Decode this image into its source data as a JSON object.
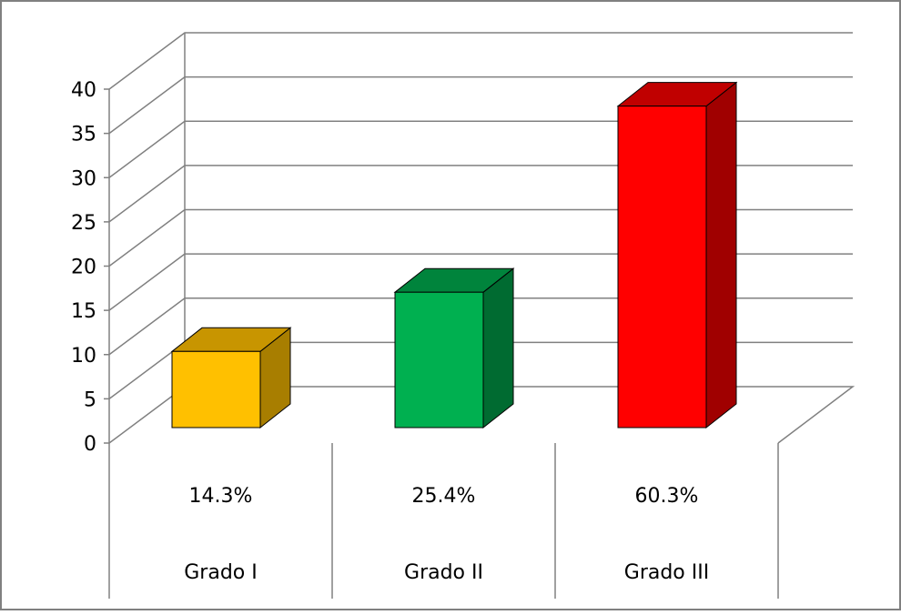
{
  "chart_data": {
    "type": "bar",
    "title": "",
    "xlabel": "",
    "ylabel": "",
    "ylim": [
      0,
      40
    ],
    "yticks": [
      0,
      5,
      10,
      15,
      20,
      25,
      30,
      35,
      40
    ],
    "grid": true,
    "legend": "none",
    "style": "3d-column",
    "categories": [
      "Grado I",
      "Grado II",
      "Grado III"
    ],
    "values": [
      9,
      16,
      38
    ],
    "table_row": [
      "14.3%",
      "25.4%",
      "60.3%"
    ],
    "bar_colors": [
      {
        "front": "#FFC000",
        "top": "#C89500",
        "side": "#A87E00"
      },
      {
        "front": "#00B050",
        "top": "#00843C",
        "side": "#006B31"
      },
      {
        "front": "#FF0000",
        "top": "#C00000",
        "side": "#A00000"
      }
    ]
  }
}
